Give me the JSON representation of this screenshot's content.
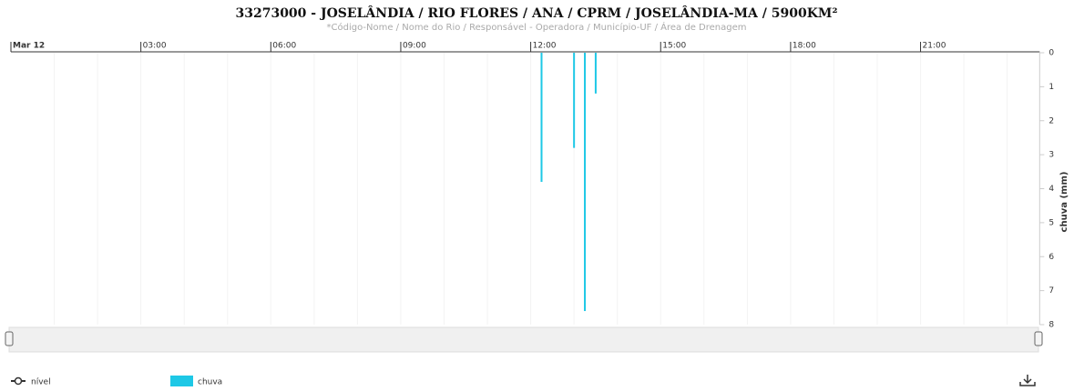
{
  "chart_data": {
    "type": "bar",
    "title": "33273000 - JOSELÂNDIA / RIO FLORES / ANA / CPRM / JOSELÂNDIA-MA / 5900KM²",
    "subtitle": "*Código-Nome / Nome do Rio / Responsável - Operadora / Município-UF / Área de Drenagem",
    "y_label": "chuva (mm)",
    "x": [
      "12:15",
      "13:00",
      "13:15",
      "13:30"
    ],
    "series": [
      {
        "name": "nível",
        "color": "#333333",
        "values": [
          null,
          null,
          null,
          null
        ]
      },
      {
        "name": "chuva",
        "color": "#1ec8e6",
        "values": [
          3.8,
          2.8,
          7.6,
          1.2
        ]
      }
    ],
    "xlim": [
      "00:00",
      "23:45"
    ],
    "xticks": [
      {
        "value": "00:00",
        "label": "Mar 12"
      },
      "03:00",
      "06:00",
      "09:00",
      "12:00",
      "15:00",
      "18:00",
      "21:00"
    ],
    "ylim": [
      0,
      8
    ],
    "yticks": [
      0,
      1,
      2,
      3,
      4,
      5,
      6,
      7,
      8
    ],
    "y_reversed": true
  }
}
